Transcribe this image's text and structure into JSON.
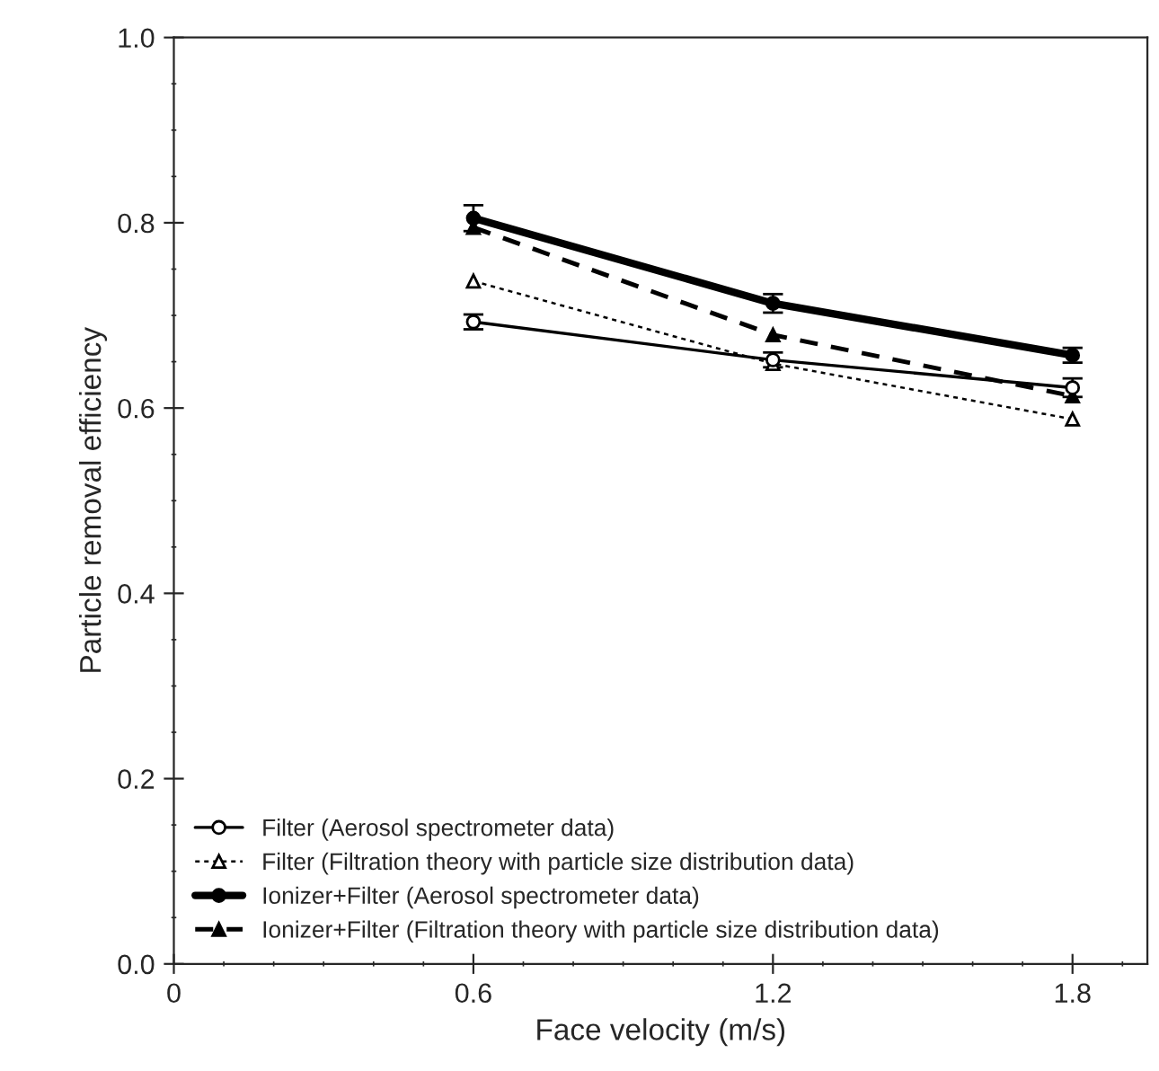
{
  "chart_data": {
    "type": "line",
    "xlabel": "Face velocity (m/s)",
    "ylabel": "Particle removal efficiency",
    "x": [
      0.6,
      1.2,
      1.8
    ],
    "series": [
      {
        "name": "Filter (Aerosol spectrometer data)",
        "color": "#000000",
        "values": [
          0.693,
          0.652,
          0.622
        ],
        "errors": [
          0.008,
          0.008,
          0.01
        ],
        "marker": "circle",
        "line_style": "solid"
      },
      {
        "name": "Filter (Filtration theory with particle size distribution data)",
        "color": "#000000",
        "values": [
          0.737,
          0.648,
          0.588
        ],
        "marker": "triangle",
        "line_style": "dotted"
      },
      {
        "name": "Ionizer+Filter (Aerosol spectrometer data)",
        "color": "#000000",
        "values": [
          0.805,
          0.713,
          0.657
        ],
        "errors": [
          0.014,
          0.01,
          0.008
        ],
        "marker": "circle",
        "line_style": "solid"
      },
      {
        "name": "Ionizer+Filter (Filtration theory with particle size distribution data)",
        "color": "#000000",
        "values": [
          0.795,
          0.679,
          0.613
        ],
        "marker": "triangle",
        "line_style": "dashed"
      }
    ],
    "xlim": [
      0,
      1.95
    ],
    "xticks": [
      0,
      0.6,
      1.2,
      1.8
    ],
    "ylim": [
      0,
      1.0
    ],
    "yticks": [
      {
        "value": 0,
        "label": "0.0"
      },
      0.2,
      0.4,
      0.6,
      0.8,
      {
        "value": 1.0,
        "label": "1.0"
      }
    ],
    "legend": "bottom left",
    "grid": false
  }
}
